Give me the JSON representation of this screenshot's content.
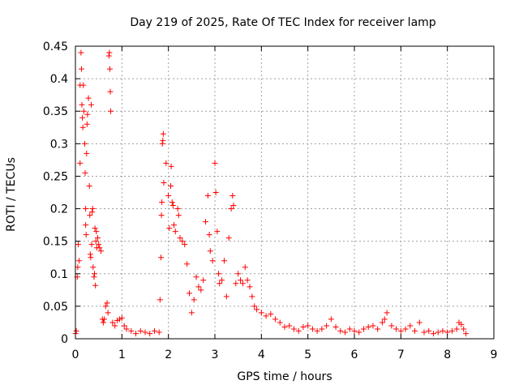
{
  "chart_data": {
    "type": "scatter",
    "title": "Day 219 of 2025, Rate Of TEC Index for receiver lamp",
    "xlabel": "GPS time / hours",
    "ylabel": "ROTI / TECUs",
    "xlim": [
      0,
      9
    ],
    "ylim": [
      0,
      0.45
    ],
    "grid": true,
    "marker": "plus",
    "color": "#ff0000",
    "x_ticks": [
      {
        "value": 0,
        "label": "0"
      },
      {
        "value": 1,
        "label": "1"
      },
      {
        "value": 2,
        "label": "2"
      },
      {
        "value": 3,
        "label": "3"
      },
      {
        "value": 4,
        "label": "4"
      },
      {
        "value": 5,
        "label": "5"
      },
      {
        "value": 6,
        "label": "6"
      },
      {
        "value": 7,
        "label": "7"
      },
      {
        "value": 8,
        "label": "8"
      },
      {
        "value": 9,
        "label": "9"
      }
    ],
    "y_ticks": [
      {
        "value": 0,
        "label": "0"
      },
      {
        "value": 0.05,
        "label": "0.05"
      },
      {
        "value": 0.1,
        "label": "0.1"
      },
      {
        "value": 0.15,
        "label": "0.15"
      },
      {
        "value": 0.2,
        "label": "0.2"
      },
      {
        "value": 0.25,
        "label": "0.25"
      },
      {
        "value": 0.3,
        "label": "0.3"
      },
      {
        "value": 0.35,
        "label": "0.35"
      },
      {
        "value": 0.4,
        "label": "0.4"
      },
      {
        "value": 0.45,
        "label": "0.45"
      }
    ],
    "series": [
      {
        "name": "ROTI",
        "points": [
          [
            0.0,
            0.008
          ],
          [
            0.02,
            0.012
          ],
          [
            0.04,
            0.095
          ],
          [
            0.05,
            0.11
          ],
          [
            0.06,
            0.145
          ],
          [
            0.08,
            0.12
          ],
          [
            0.1,
            0.27
          ],
          [
            0.1,
            0.39
          ],
          [
            0.12,
            0.44
          ],
          [
            0.13,
            0.415
          ],
          [
            0.14,
            0.36
          ],
          [
            0.15,
            0.34
          ],
          [
            0.16,
            0.325
          ],
          [
            0.17,
            0.39
          ],
          [
            0.18,
            0.35
          ],
          [
            0.2,
            0.3
          ],
          [
            0.21,
            0.255
          ],
          [
            0.22,
            0.2
          ],
          [
            0.22,
            0.175
          ],
          [
            0.23,
            0.16
          ],
          [
            0.24,
            0.285
          ],
          [
            0.25,
            0.33
          ],
          [
            0.26,
            0.345
          ],
          [
            0.28,
            0.37
          ],
          [
            0.3,
            0.235
          ],
          [
            0.31,
            0.19
          ],
          [
            0.32,
            0.13
          ],
          [
            0.33,
            0.125
          ],
          [
            0.34,
            0.36
          ],
          [
            0.35,
            0.145
          ],
          [
            0.36,
            0.195
          ],
          [
            0.37,
            0.2
          ],
          [
            0.38,
            0.11
          ],
          [
            0.4,
            0.095
          ],
          [
            0.41,
            0.1
          ],
          [
            0.42,
            0.17
          ],
          [
            0.43,
            0.082
          ],
          [
            0.44,
            0.15
          ],
          [
            0.45,
            0.165
          ],
          [
            0.46,
            0.14
          ],
          [
            0.48,
            0.155
          ],
          [
            0.5,
            0.145
          ],
          [
            0.52,
            0.14
          ],
          [
            0.55,
            0.135
          ],
          [
            0.58,
            0.03
          ],
          [
            0.6,
            0.025
          ],
          [
            0.62,
            0.03
          ],
          [
            0.65,
            0.05
          ],
          [
            0.68,
            0.055
          ],
          [
            0.7,
            0.04
          ],
          [
            0.72,
            0.435
          ],
          [
            0.73,
            0.44
          ],
          [
            0.74,
            0.415
          ],
          [
            0.75,
            0.38
          ],
          [
            0.76,
            0.35
          ],
          [
            0.8,
            0.025
          ],
          [
            0.85,
            0.02
          ],
          [
            0.9,
            0.028
          ],
          [
            0.95,
            0.03
          ],
          [
            1.0,
            0.032
          ],
          [
            1.05,
            0.02
          ],
          [
            1.1,
            0.015
          ],
          [
            1.2,
            0.012
          ],
          [
            1.3,
            0.008
          ],
          [
            1.4,
            0.012
          ],
          [
            1.5,
            0.01
          ],
          [
            1.6,
            0.008
          ],
          [
            1.7,
            0.012
          ],
          [
            1.8,
            0.01
          ],
          [
            1.82,
            0.06
          ],
          [
            1.84,
            0.125
          ],
          [
            1.85,
            0.19
          ],
          [
            1.86,
            0.21
          ],
          [
            1.87,
            0.3
          ],
          [
            1.88,
            0.305
          ],
          [
            1.89,
            0.315
          ],
          [
            1.9,
            0.24
          ],
          [
            1.95,
            0.27
          ],
          [
            2.0,
            0.22
          ],
          [
            2.02,
            0.17
          ],
          [
            2.05,
            0.235
          ],
          [
            2.06,
            0.265
          ],
          [
            2.08,
            0.21
          ],
          [
            2.1,
            0.205
          ],
          [
            2.12,
            0.175
          ],
          [
            2.15,
            0.165
          ],
          [
            2.2,
            0.2
          ],
          [
            2.22,
            0.19
          ],
          [
            2.25,
            0.155
          ],
          [
            2.3,
            0.15
          ],
          [
            2.35,
            0.145
          ],
          [
            2.4,
            0.115
          ],
          [
            2.45,
            0.07
          ],
          [
            2.5,
            0.04
          ],
          [
            2.55,
            0.06
          ],
          [
            2.6,
            0.095
          ],
          [
            2.65,
            0.08
          ],
          [
            2.7,
            0.075
          ],
          [
            2.75,
            0.09
          ],
          [
            2.8,
            0.18
          ],
          [
            2.85,
            0.22
          ],
          [
            2.88,
            0.16
          ],
          [
            2.9,
            0.135
          ],
          [
            2.95,
            0.12
          ],
          [
            3.0,
            0.27
          ],
          [
            3.02,
            0.225
          ],
          [
            3.05,
            0.165
          ],
          [
            3.08,
            0.1
          ],
          [
            3.1,
            0.085
          ],
          [
            3.15,
            0.09
          ],
          [
            3.2,
            0.12
          ],
          [
            3.25,
            0.065
          ],
          [
            3.3,
            0.155
          ],
          [
            3.35,
            0.2
          ],
          [
            3.38,
            0.22
          ],
          [
            3.4,
            0.205
          ],
          [
            3.45,
            0.085
          ],
          [
            3.5,
            0.1
          ],
          [
            3.55,
            0.09
          ],
          [
            3.6,
            0.085
          ],
          [
            3.65,
            0.11
          ],
          [
            3.7,
            0.09
          ],
          [
            3.75,
            0.08
          ],
          [
            3.8,
            0.065
          ],
          [
            3.85,
            0.05
          ],
          [
            3.9,
            0.045
          ],
          [
            4.0,
            0.04
          ],
          [
            4.1,
            0.035
          ],
          [
            4.2,
            0.038
          ],
          [
            4.3,
            0.03
          ],
          [
            4.4,
            0.025
          ],
          [
            4.5,
            0.018
          ],
          [
            4.6,
            0.02
          ],
          [
            4.7,
            0.015
          ],
          [
            4.8,
            0.012
          ],
          [
            4.9,
            0.018
          ],
          [
            5.0,
            0.02
          ],
          [
            5.1,
            0.015
          ],
          [
            5.2,
            0.012
          ],
          [
            5.3,
            0.015
          ],
          [
            5.4,
            0.02
          ],
          [
            5.5,
            0.03
          ],
          [
            5.6,
            0.018
          ],
          [
            5.7,
            0.012
          ],
          [
            5.8,
            0.01
          ],
          [
            5.9,
            0.015
          ],
          [
            6.0,
            0.012
          ],
          [
            6.1,
            0.01
          ],
          [
            6.2,
            0.015
          ],
          [
            6.3,
            0.018
          ],
          [
            6.4,
            0.02
          ],
          [
            6.5,
            0.015
          ],
          [
            6.6,
            0.025
          ],
          [
            6.65,
            0.03
          ],
          [
            6.7,
            0.04
          ],
          [
            6.8,
            0.02
          ],
          [
            6.9,
            0.015
          ],
          [
            7.0,
            0.012
          ],
          [
            7.1,
            0.015
          ],
          [
            7.2,
            0.02
          ],
          [
            7.3,
            0.012
          ],
          [
            7.4,
            0.025
          ],
          [
            7.5,
            0.01
          ],
          [
            7.6,
            0.012
          ],
          [
            7.7,
            0.008
          ],
          [
            7.8,
            0.01
          ],
          [
            7.9,
            0.012
          ],
          [
            8.0,
            0.01
          ],
          [
            8.1,
            0.012
          ],
          [
            8.2,
            0.015
          ],
          [
            8.25,
            0.025
          ],
          [
            8.3,
            0.022
          ],
          [
            8.35,
            0.015
          ],
          [
            8.4,
            0.008
          ]
        ]
      }
    ]
  }
}
